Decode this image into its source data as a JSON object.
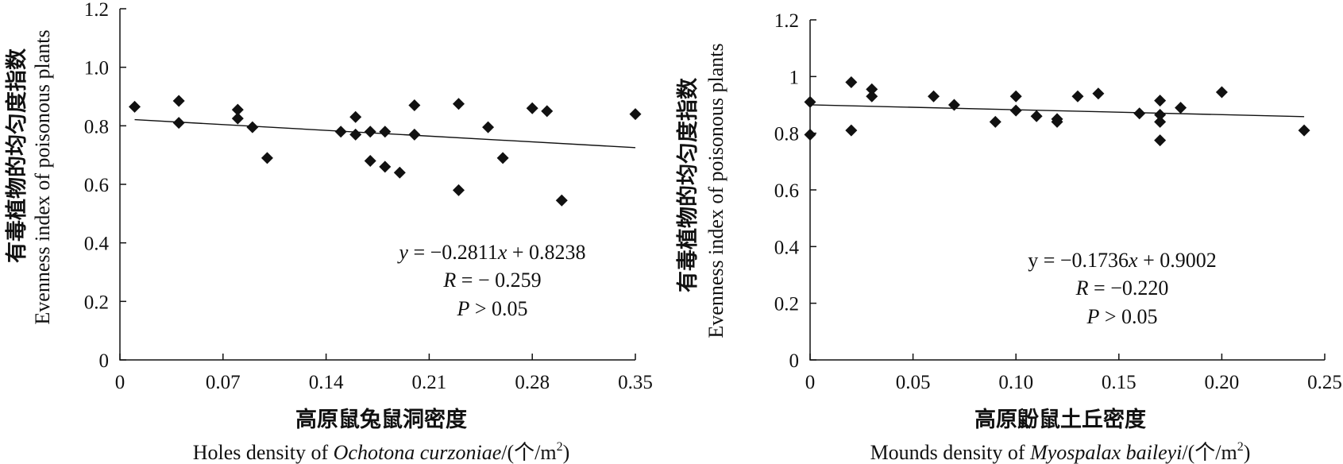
{
  "chart_data": [
    {
      "type": "scatter",
      "ylabel_cn": "有毒植物的均匀度指数",
      "ylabel_en": "Evenness index of poisonous plants",
      "xlabel_cn": "高原鼠兔鼠洞密度",
      "xlabel_en_prefix": "Holes density of ",
      "xlabel_en_species": "Ochotona curzoniae",
      "xlabel_en_unit": "/(个/m",
      "xlabel_en_sup": "2",
      "xlabel_en_close": ")",
      "xlim": [
        0,
        0.35
      ],
      "ylim": [
        0,
        1.2
      ],
      "xticks": [
        "0",
        "0.07",
        "0.14",
        "0.21",
        "0.28",
        "0.35"
      ],
      "yticks": [
        "0",
        "0.2",
        "0.4",
        "0.6",
        "0.8",
        "1.0",
        "1.2"
      ],
      "fit": {
        "slope": -0.2811,
        "intercept": 0.8238,
        "x_range": [
          0.01,
          0.35
        ]
      },
      "annotations": {
        "eq_y": "y",
        "eq_mid": " = −0.2811",
        "eq_x": "x",
        "eq_end": " + 0.8238",
        "r_sym": "R",
        "r_val": " = − 0.259",
        "p_sym": "P",
        "p_val": " > 0.05"
      },
      "points": [
        [
          0.01,
          0.865
        ],
        [
          0.04,
          0.885
        ],
        [
          0.04,
          0.81
        ],
        [
          0.08,
          0.855
        ],
        [
          0.08,
          0.825
        ],
        [
          0.09,
          0.795
        ],
        [
          0.1,
          0.69
        ],
        [
          0.15,
          0.78
        ],
        [
          0.16,
          0.83
        ],
        [
          0.16,
          0.77
        ],
        [
          0.17,
          0.78
        ],
        [
          0.17,
          0.68
        ],
        [
          0.18,
          0.78
        ],
        [
          0.18,
          0.66
        ],
        [
          0.19,
          0.64
        ],
        [
          0.2,
          0.87
        ],
        [
          0.2,
          0.77
        ],
        [
          0.23,
          0.875
        ],
        [
          0.23,
          0.58
        ],
        [
          0.25,
          0.795
        ],
        [
          0.26,
          0.69
        ],
        [
          0.28,
          0.86
        ],
        [
          0.29,
          0.85
        ],
        [
          0.3,
          0.545
        ],
        [
          0.35,
          0.84
        ]
      ]
    },
    {
      "type": "scatter",
      "ylabel_cn": "有毒植物的均匀度指数",
      "ylabel_en": "Evenness index of poisonous plants",
      "xlabel_cn": "高原鼢鼠土丘密度",
      "xlabel_en_prefix": "Mounds density of ",
      "xlabel_en_species": "Myospalax baileyi",
      "xlabel_en_unit": "/(个/m",
      "xlabel_en_sup": "2",
      "xlabel_en_close": ")",
      "xlim": [
        0,
        0.25
      ],
      "ylim": [
        0,
        1.2
      ],
      "xticks": [
        "0",
        "0.05",
        "0.10",
        "0.15",
        "0.20",
        "0.25"
      ],
      "yticks": [
        "0",
        "0.2",
        "0.4",
        "0.6",
        "0.8",
        "1",
        "1.2"
      ],
      "fit": {
        "slope": -0.1736,
        "intercept": 0.9002,
        "x_range": [
          0,
          0.24
        ]
      },
      "annotations": {
        "eq_y": "y",
        "eq_mid": " = −0.1736",
        "eq_x": "x",
        "eq_end": " + 0.9002",
        "r_sym": "R",
        "r_val": " = −0.220",
        "p_sym": "P",
        "p_val": " > 0.05"
      },
      "points": [
        [
          0,
          0.91
        ],
        [
          0,
          0.795
        ],
        [
          0.02,
          0.98
        ],
        [
          0.02,
          0.81
        ],
        [
          0.03,
          0.955
        ],
        [
          0.03,
          0.93
        ],
        [
          0.06,
          0.93
        ],
        [
          0.07,
          0.9
        ],
        [
          0.09,
          0.84
        ],
        [
          0.1,
          0.93
        ],
        [
          0.1,
          0.88
        ],
        [
          0.11,
          0.86
        ],
        [
          0.12,
          0.85
        ],
        [
          0.12,
          0.84
        ],
        [
          0.13,
          0.93
        ],
        [
          0.14,
          0.94
        ],
        [
          0.16,
          0.87
        ],
        [
          0.17,
          0.915
        ],
        [
          0.17,
          0.865
        ],
        [
          0.17,
          0.84
        ],
        [
          0.17,
          0.775
        ],
        [
          0.18,
          0.89
        ],
        [
          0.2,
          0.945
        ],
        [
          0.24,
          0.81
        ]
      ]
    }
  ]
}
